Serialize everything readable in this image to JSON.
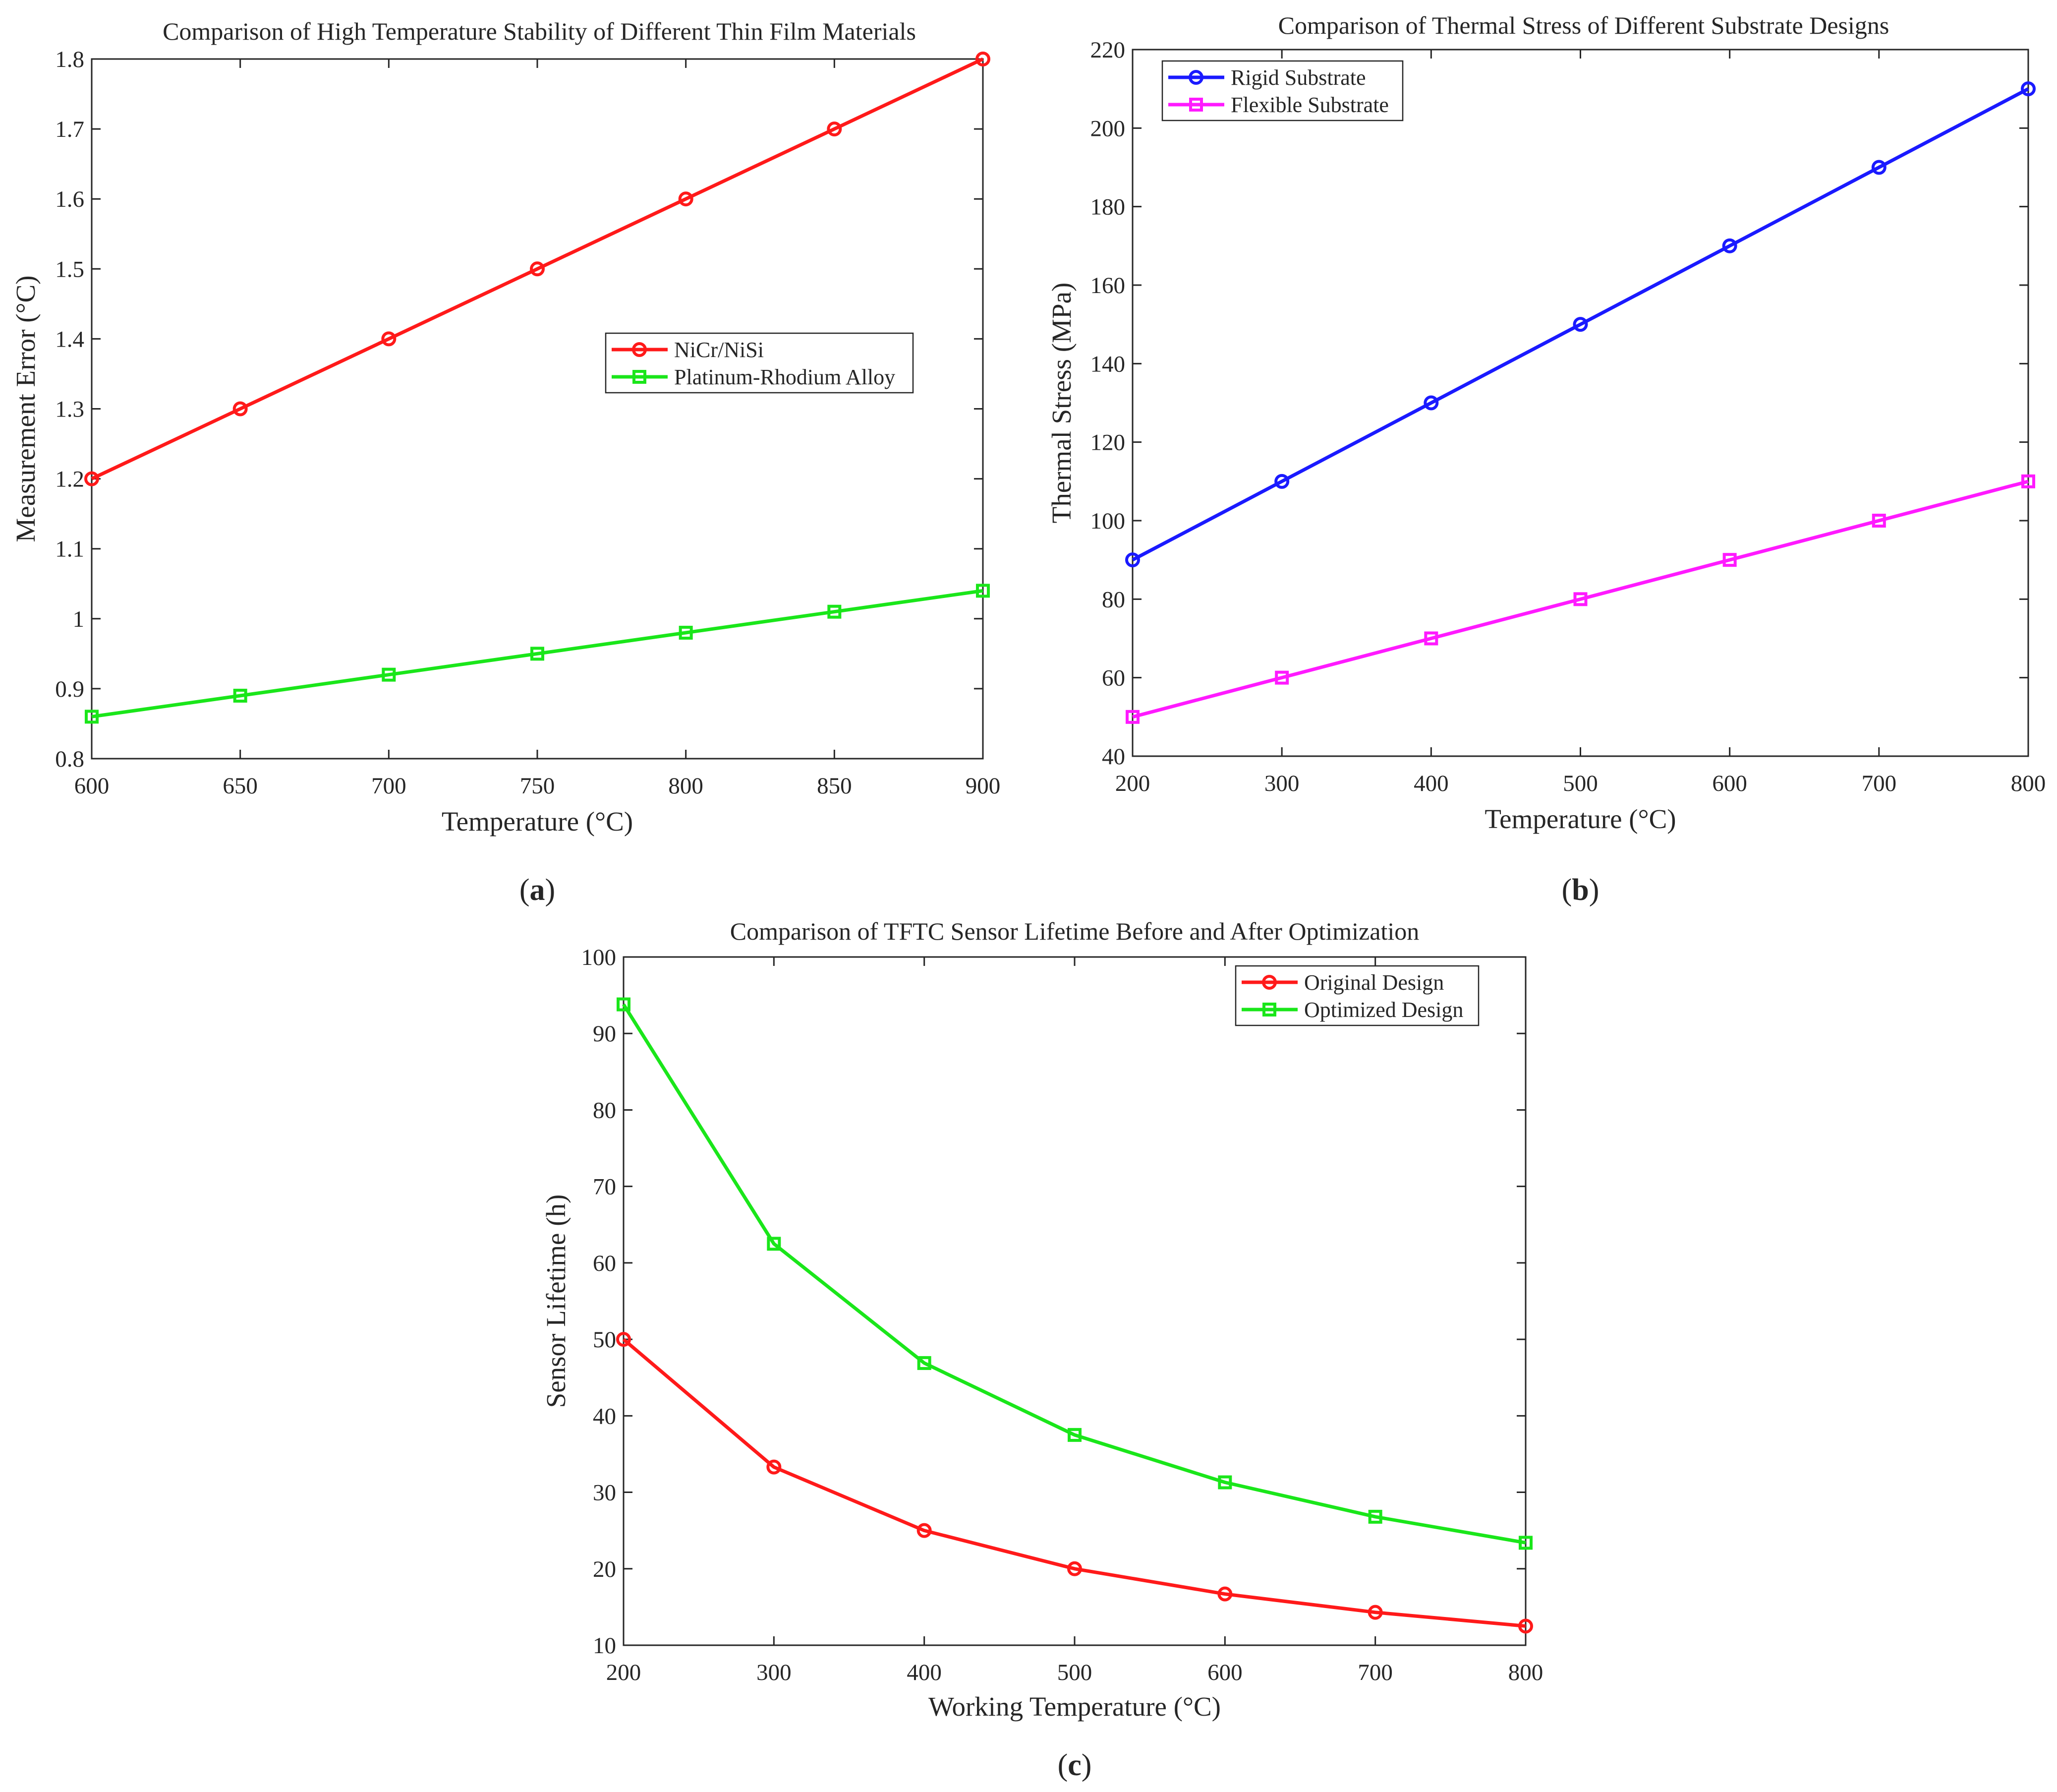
{
  "chart_data": [
    {
      "id": "a",
      "type": "line",
      "panel_label": "a",
      "title": "Comparison of High Temperature Stability of Different Thin Film Materials",
      "xlabel": "Temperature (°C)",
      "ylabel": "Measurement Error (°C)",
      "xlim": [
        600,
        900
      ],
      "ylim": [
        0.8,
        1.8
      ],
      "xticks": [
        600,
        650,
        700,
        750,
        800,
        850,
        900
      ],
      "yticks": [
        0.8,
        0.9,
        1,
        1.1,
        1.2,
        1.3,
        1.4,
        1.5,
        1.6,
        1.7,
        1.8
      ],
      "ytick_labels": [
        "0.8",
        "0.9",
        "1",
        "1.1",
        "1.2",
        "1.3",
        "1.4",
        "1.5",
        "1.6",
        "1.7",
        "1.8"
      ],
      "grid": true,
      "legend_position": "center-right",
      "x": [
        600,
        650,
        700,
        750,
        800,
        850,
        900
      ],
      "series": [
        {
          "name": "NiCr/NiSi",
          "color": "#ff1a1a",
          "marker": "circle",
          "values": [
            1.2,
            1.3,
            1.4,
            1.5,
            1.6,
            1.7,
            1.8
          ]
        },
        {
          "name": "Platinum-Rhodium Alloy",
          "color": "#1ae61a",
          "marker": "square",
          "values": [
            0.86,
            0.89,
            0.92,
            0.95,
            0.98,
            1.01,
            1.04
          ]
        }
      ]
    },
    {
      "id": "b",
      "type": "line",
      "panel_label": "b",
      "title": "Comparison of Thermal Stress of Different Substrate Designs",
      "xlabel": "Temperature (°C)",
      "ylabel": "Thermal Stress (MPa)",
      "xlim": [
        200,
        800
      ],
      "ylim": [
        40,
        220
      ],
      "xticks": [
        200,
        300,
        400,
        500,
        600,
        700,
        800
      ],
      "yticks": [
        40,
        60,
        80,
        100,
        120,
        140,
        160,
        180,
        200,
        220
      ],
      "ytick_labels": [
        "40",
        "60",
        "80",
        "100",
        "120",
        "140",
        "160",
        "180",
        "200",
        "220"
      ],
      "grid": true,
      "legend_position": "top-left",
      "x": [
        200,
        300,
        400,
        500,
        600,
        700,
        800
      ],
      "series": [
        {
          "name": "Rigid Substrate",
          "color": "#1a1aff",
          "marker": "circle",
          "values": [
            90,
            110,
            130,
            150,
            170,
            190,
            210
          ]
        },
        {
          "name": "Flexible Substrate",
          "color": "#ff1aff",
          "marker": "square",
          "values": [
            50,
            60,
            70,
            80,
            90,
            100,
            110
          ]
        }
      ]
    },
    {
      "id": "c",
      "type": "line",
      "panel_label": "c",
      "title": "Comparison of TFTC Sensor Lifetime Before and After Optimization",
      "xlabel": "Working Temperature (°C)",
      "ylabel": "Sensor Lifetime (h)",
      "xlim": [
        200,
        800
      ],
      "ylim": [
        10,
        100
      ],
      "xticks": [
        200,
        300,
        400,
        500,
        600,
        700,
        800
      ],
      "yticks": [
        10,
        20,
        30,
        40,
        50,
        60,
        70,
        80,
        90,
        100
      ],
      "ytick_labels": [
        "10",
        "20",
        "30",
        "40",
        "50",
        "60",
        "70",
        "80",
        "90",
        "100"
      ],
      "grid": true,
      "legend_position": "top-right",
      "x": [
        200,
        300,
        400,
        500,
        600,
        700,
        800
      ],
      "series": [
        {
          "name": "Original Design",
          "color": "#ff1a1a",
          "marker": "circle",
          "values": [
            50,
            33.3,
            25,
            20,
            16.7,
            14.3,
            12.5
          ]
        },
        {
          "name": "Optimized Design",
          "color": "#1ae61a",
          "marker": "square",
          "values": [
            93.8,
            62.5,
            46.9,
            37.5,
            31.3,
            26.8,
            23.4
          ]
        }
      ]
    }
  ]
}
